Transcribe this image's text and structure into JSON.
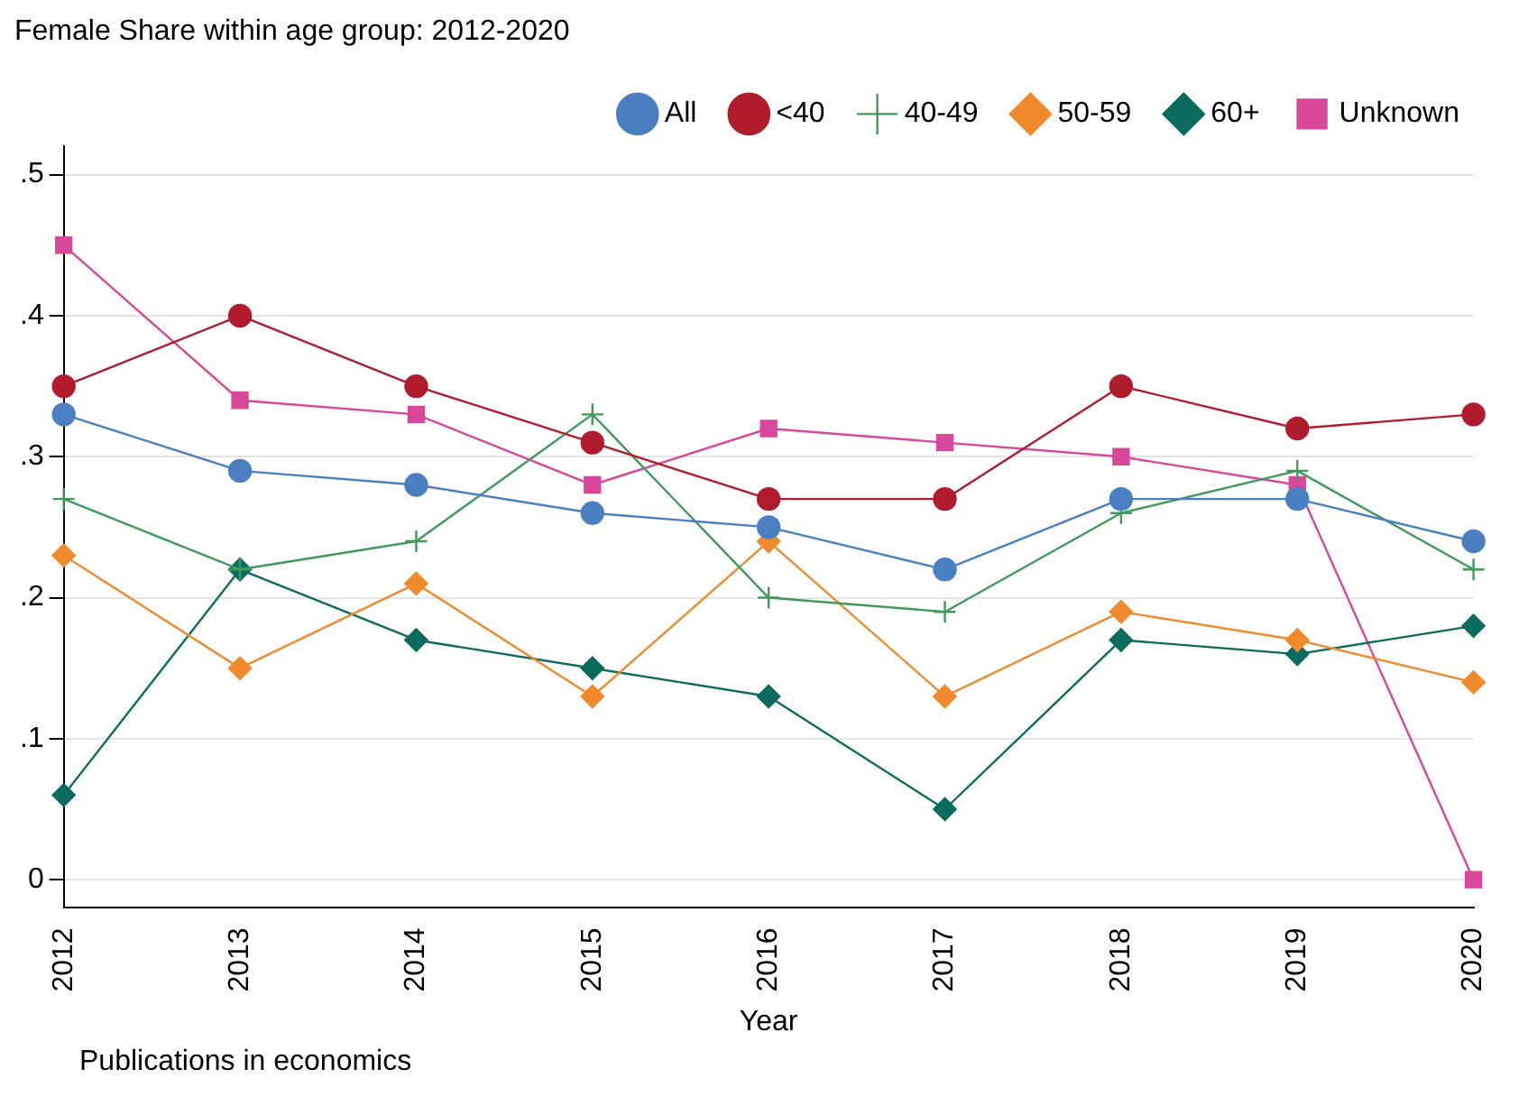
{
  "chart_data": {
    "type": "line",
    "title": "Female Share within age group: 2012-2020",
    "xlabel": "Year",
    "annotations": [
      "Publications in economics"
    ],
    "categories": [
      "2012",
      "2013",
      "2014",
      "2015",
      "2016",
      "2017",
      "2018",
      "2019",
      "2020"
    ],
    "series": [
      {
        "name": "All",
        "color": "#4a7fc1",
        "marker": "circle",
        "values": [
          0.33,
          0.29,
          0.28,
          0.26,
          0.25,
          0.22,
          0.27,
          0.27,
          0.24
        ]
      },
      {
        "name": "<40",
        "color": "#b01c2e",
        "marker": "circle",
        "values": [
          0.35,
          0.4,
          0.35,
          0.31,
          0.27,
          0.27,
          0.35,
          0.32,
          0.33
        ]
      },
      {
        "name": "40-49",
        "color": "#3f9a5a",
        "marker": "cross",
        "values": [
          0.27,
          0.22,
          0.24,
          0.33,
          0.2,
          0.19,
          0.26,
          0.29,
          0.22
        ]
      },
      {
        "name": "50-59",
        "color": "#f08a2c",
        "marker": "diamond",
        "values": [
          0.23,
          0.15,
          0.21,
          0.13,
          0.24,
          0.13,
          0.19,
          0.17,
          0.14
        ]
      },
      {
        "name": "60+",
        "color": "#0a6b5e",
        "marker": "diamond",
        "values": [
          0.06,
          0.22,
          0.17,
          0.15,
          0.13,
          0.05,
          0.17,
          0.16,
          0.18
        ]
      },
      {
        "name": "Unknown",
        "color": "#d9479b",
        "marker": "square",
        "values": [
          0.45,
          0.34,
          0.33,
          0.28,
          0.32,
          0.31,
          0.3,
          0.28,
          0
        ]
      }
    ],
    "ylim": [
      -0.02,
      0.52
    ],
    "yticks": [
      {
        "value": 0,
        "label": "0"
      },
      {
        "value": 0.1,
        "label": ".1"
      },
      {
        "value": 0.2,
        "label": ".2"
      },
      {
        "value": 0.3,
        "label": ".3"
      },
      {
        "value": 0.4,
        "label": ".4"
      },
      {
        "value": 0.5,
        "label": ".5"
      }
    ],
    "grid": "y",
    "legend": "top right",
    "line_style": "solid"
  }
}
